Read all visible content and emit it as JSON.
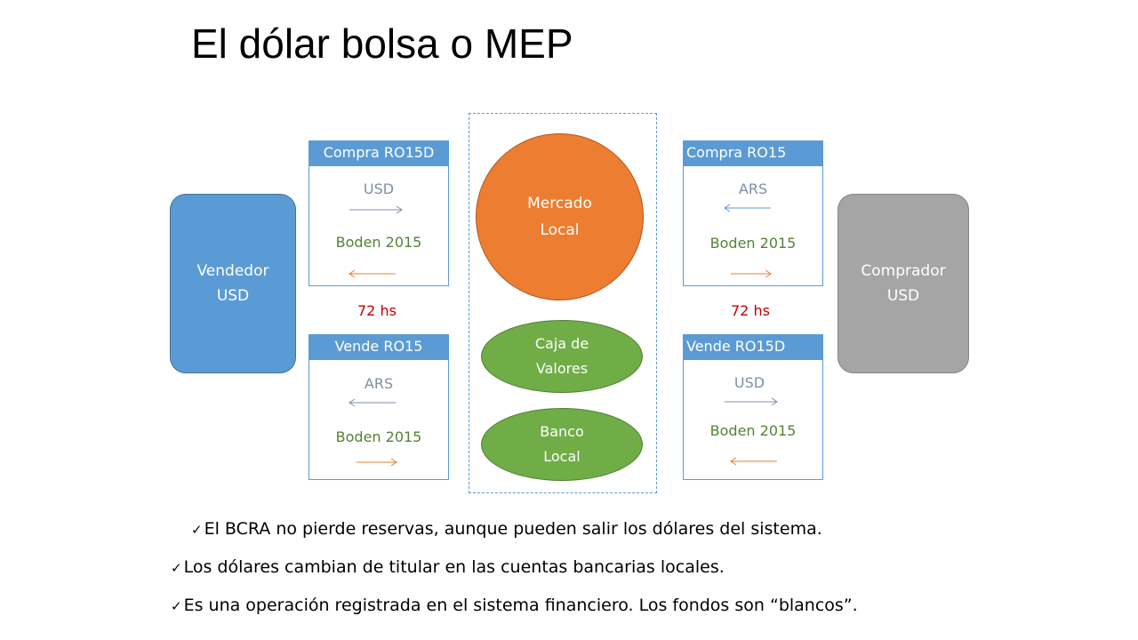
{
  "title": "El dólar bolsa o MEP",
  "vendedor": {
    "line1": "Vendedor",
    "line2": "USD"
  },
  "comprador": {
    "line1": "Comprador",
    "line2": "USD"
  },
  "cards": {
    "top_left": {
      "header": "Compra RO15D",
      "currency": "USD",
      "bond": "Boden 2015"
    },
    "bottom_left": {
      "header": "Vende RO15",
      "currency": "ARS",
      "bond": "Boden 2015"
    },
    "top_right": {
      "header": "Compra RO15",
      "currency": "ARS",
      "bond": "Boden 2015"
    },
    "bottom_right": {
      "header": "Vende RO15D",
      "currency": "USD",
      "bond": "Boden 2015"
    }
  },
  "hours": {
    "left": "72 hs",
    "right": "72 hs"
  },
  "mercado": {
    "line1": "Mercado",
    "line2": "Local"
  },
  "caja": {
    "line1": "Caja de",
    "line2": "Valores"
  },
  "banco": {
    "line1": "Banco",
    "line2": "Local"
  },
  "bullets": [
    "El BCRA no pierde reservas, aunque pueden salir los dólares del sistema.",
    "Los dólares cambian de titular en las cuentas bancarias locales.",
    "Es una operación registrada en el sistema financiero. Los fondos son “blancos”."
  ],
  "colors": {
    "blue": "#5b9bd5",
    "orange": "#ed7d31",
    "green": "#70ad47",
    "gray": "#a5a5a5",
    "red": "#c00000"
  }
}
